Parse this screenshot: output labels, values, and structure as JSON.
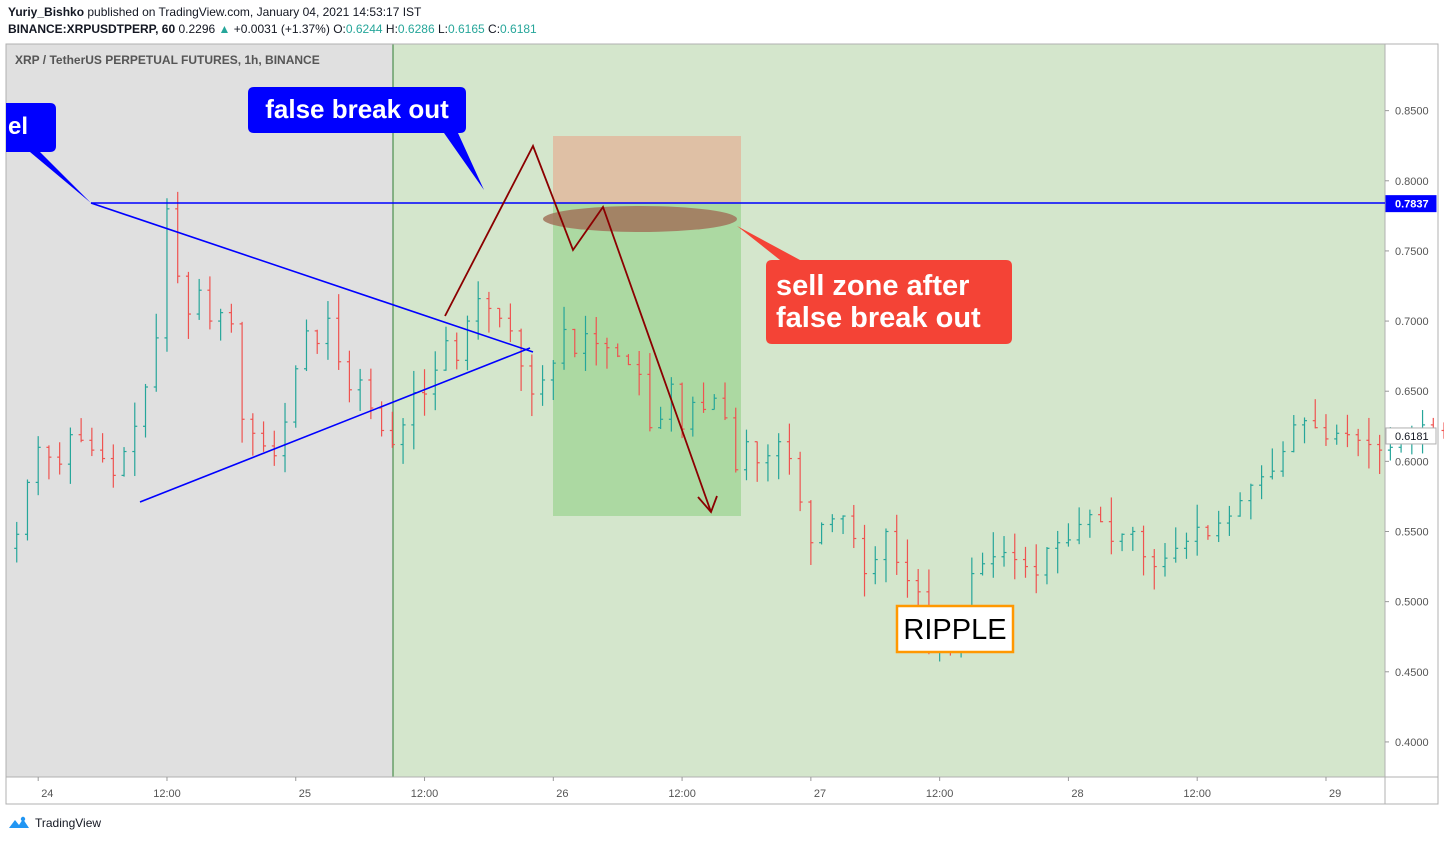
{
  "header": {
    "author": "Yuriy_Bishko",
    "published_text": "published on TradingView.com, January 04, 2021 14:53:17 IST",
    "symbol": "BINANCE:XRPUSDTPERP, 60",
    "last": "0.2296",
    "change_arrow": "▲",
    "change": "+0.0031 (+1.37%)",
    "o_label": "O:",
    "o": "0.6244",
    "h_label": "H:",
    "h": "0.6286",
    "l_label": "L:",
    "l": "0.6165",
    "c_label": "C:",
    "c": "0.6181"
  },
  "chart_title": "XRP / TetherUS PERPETUAL FUTURES, 1h, BINANCE",
  "footer": {
    "brand": "TradingView",
    "logo_icon": "tradingview-logo-icon"
  },
  "chart_data": {
    "type": "ohlc",
    "title": "XRP / TetherUS PERPETUAL FUTURES, 1h, BINANCE",
    "ylim": [
      0.375,
      0.8975
    ],
    "y_ticks": [
      0.85,
      0.8,
      0.75,
      0.7,
      0.65,
      0.6,
      0.55,
      0.5,
      0.45,
      0.4
    ],
    "y_tick_labels": [
      "0.8500",
      "0.8000",
      "0.7500",
      "0.7000",
      "0.6500",
      "0.6000",
      "0.5500",
      "0.5000",
      "0.4500",
      "0.4000"
    ],
    "x_range_hours": [
      -3,
      125.5
    ],
    "x_ticks": [
      {
        "h": 0,
        "label": "24"
      },
      {
        "h": 12,
        "label": "12:00"
      },
      {
        "h": 24,
        "label": "25"
      },
      {
        "h": 36,
        "label": "12:00"
      },
      {
        "h": 48,
        "label": "26"
      },
      {
        "h": 60,
        "label": "12:00"
      },
      {
        "h": 72,
        "label": "27"
      },
      {
        "h": 84,
        "label": "12:00"
      },
      {
        "h": 96,
        "label": "28"
      },
      {
        "h": 108,
        "label": "12:00"
      },
      {
        "h": 120,
        "label": "29"
      },
      {
        "h": 132,
        "label": "12:00"
      }
    ],
    "price_labels": [
      {
        "value": 0.7837,
        "label": "0.7837",
        "color": "#0000ff"
      },
      {
        "value": 0.6181,
        "label": "0.6181",
        "color": "#ffffff"
      }
    ],
    "closes": [
      0.548,
      0.585,
      0.61,
      0.603,
      0.598,
      0.619,
      0.615,
      0.608,
      0.602,
      0.59,
      0.607,
      0.625,
      0.653,
      0.688,
      0.78,
      0.732,
      0.705,
      0.722,
      0.7,
      0.706,
      0.698,
      0.63,
      0.62,
      0.611,
      0.604,
      0.628,
      0.666,
      0.693,
      0.684,
      0.702,
      0.671,
      0.651,
      0.658,
      0.638,
      0.622,
      0.612,
      0.626,
      0.649,
      0.648,
      0.665,
      0.686,
      0.672,
      0.7,
      0.716,
      0.709,
      0.702,
      0.693,
      0.668,
      0.648,
      0.658,
      0.67,
      0.694,
      0.677,
      0.691,
      0.684,
      0.681,
      0.675,
      0.669,
      0.662,
      0.624,
      0.63,
      0.655,
      0.623,
      0.642,
      0.637,
      0.645,
      0.631,
      0.594,
      0.614,
      0.599,
      0.604,
      0.614,
      0.602,
      0.571,
      0.542,
      0.555,
      0.559,
      0.561,
      0.545,
      0.52,
      0.53,
      0.55,
      0.528,
      0.515,
      0.507,
      0.47,
      0.481,
      0.478,
      0.48,
      0.52,
      0.527,
      0.532,
      0.535,
      0.53,
      0.525,
      0.519,
      0.538,
      0.542,
      0.544,
      0.555,
      0.562,
      0.557,
      0.543,
      0.548,
      0.55,
      0.532,
      0.525,
      0.531,
      0.538,
      0.543,
      0.553,
      0.547,
      0.556,
      0.561,
      0.572,
      0.583,
      0.589,
      0.593,
      0.607,
      0.626,
      0.629,
      0.624,
      0.616,
      0.62,
      0.619,
      0.615,
      0.612,
      0.608,
      0.61,
      0.618,
      0.623,
      0.626,
      0.622,
      0.619,
      0.617,
      0.618
    ]
  },
  "annotations": {
    "top_left_callout": "el",
    "false_break_out": "false break out",
    "sell_zone_line1": "sell zone after",
    "sell_zone_line2": "false break out",
    "ripple_label": "RIPPLE"
  },
  "colors": {
    "up": "#26a69a",
    "down": "#ef5350",
    "pre_zone_bg": "#e0e0e0",
    "post_zone_bg": "#d4e6cc",
    "resistance_line": "#0000ff",
    "triangle": "#0000ff",
    "zigzag": "#8b0000",
    "callout_blue": "#0000ff",
    "callout_red": "#f44336",
    "ripple_border": "#ff9800"
  }
}
